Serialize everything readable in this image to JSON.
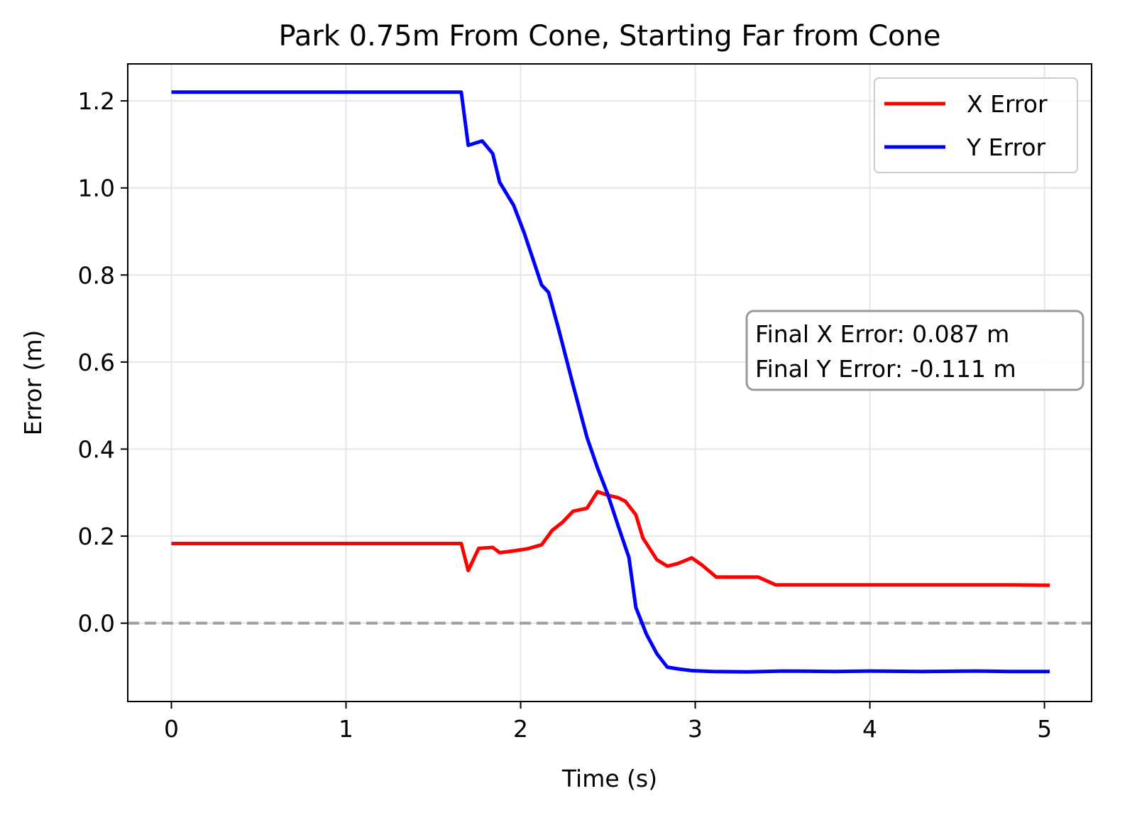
{
  "chart_data": {
    "type": "line",
    "title": "Park 0.75m From Cone, Starting Far from Cone",
    "xlabel": "Time (s)",
    "ylabel": "Error (m)",
    "xlim": [
      -0.25,
      5.27
    ],
    "ylim": [
      -0.18,
      1.285
    ],
    "xticks": [
      0,
      1,
      2,
      3,
      4,
      5
    ],
    "xtick_labels": [
      "0",
      "1",
      "2",
      "3",
      "4",
      "5"
    ],
    "yticks": [
      0.0,
      0.2,
      0.4,
      0.6,
      0.8,
      1.0,
      1.2
    ],
    "ytick_labels": [
      "0.0",
      "0.2",
      "0.4",
      "0.6",
      "0.8",
      "1.0",
      "1.2"
    ],
    "grid": true,
    "legend_position": "top-right",
    "reference_line": {
      "y": 0.0,
      "style": "dashed",
      "color": "#a0a0a0"
    },
    "series": [
      {
        "name": "X Error",
        "color": "#ff0000",
        "x": [
          0,
          1.66,
          1.7,
          1.76,
          1.84,
          1.88,
          1.96,
          2.04,
          2.12,
          2.18,
          2.24,
          2.3,
          2.38,
          2.44,
          2.5,
          2.56,
          2.6,
          2.66,
          2.7,
          2.78,
          2.84,
          2.9,
          2.98,
          3.04,
          3.12,
          3.2,
          3.28,
          3.36,
          3.46,
          3.6,
          3.8,
          4.0,
          4.2,
          4.4,
          4.6,
          4.8,
          5.03
        ],
        "y": [
          0.183,
          0.183,
          0.121,
          0.172,
          0.174,
          0.162,
          0.166,
          0.171,
          0.18,
          0.213,
          0.232,
          0.257,
          0.264,
          0.302,
          0.294,
          0.288,
          0.28,
          0.249,
          0.196,
          0.146,
          0.131,
          0.137,
          0.15,
          0.133,
          0.106,
          0.106,
          0.106,
          0.106,
          0.088,
          0.088,
          0.088,
          0.088,
          0.088,
          0.088,
          0.088,
          0.088,
          0.087
        ]
      },
      {
        "name": "Y Error",
        "color": "#0000ff",
        "x": [
          0,
          1.66,
          1.7,
          1.78,
          1.84,
          1.88,
          1.96,
          2.02,
          2.12,
          2.16,
          2.22,
          2.3,
          2.38,
          2.44,
          2.5,
          2.56,
          2.62,
          2.66,
          2.72,
          2.78,
          2.84,
          2.9,
          2.98,
          3.1,
          3.3,
          3.5,
          3.8,
          4.0,
          4.3,
          4.6,
          4.8,
          5.03
        ],
        "y": [
          1.22,
          1.22,
          1.098,
          1.108,
          1.079,
          1.013,
          0.96,
          0.897,
          0.777,
          0.76,
          0.672,
          0.548,
          0.427,
          0.357,
          0.295,
          0.222,
          0.151,
          0.036,
          -0.025,
          -0.07,
          -0.101,
          -0.105,
          -0.109,
          -0.111,
          -0.112,
          -0.11,
          -0.111,
          -0.11,
          -0.111,
          -0.11,
          -0.111,
          -0.111
        ]
      }
    ],
    "annotation": {
      "lines": [
        "Final X Error: 0.087 m",
        "Final Y Error: -0.111 m"
      ]
    }
  }
}
